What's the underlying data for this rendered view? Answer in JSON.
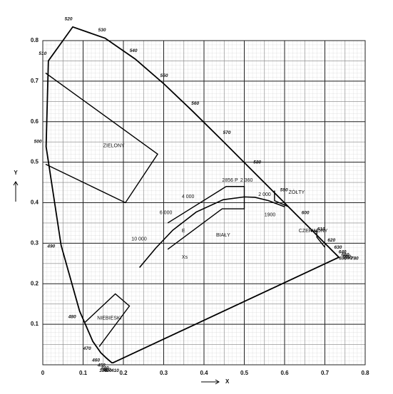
{
  "chart_data": {
    "type": "line",
    "x_label": "X",
    "y_label": "Y",
    "xlim": [
      0,
      0.8
    ],
    "ylim": [
      0,
      0.8
    ],
    "xticks": [
      0,
      0.1,
      0.2,
      0.3,
      0.4,
      0.5,
      0.6,
      0.7,
      0.8
    ],
    "yticks": [
      0.1,
      0.2,
      0.3,
      0.4,
      0.5,
      0.6,
      0.7,
      0.8
    ],
    "grid": true,
    "color": "#000000",
    "spectral_locus": {
      "x": [
        0.1741,
        0.1714,
        0.1689,
        0.1644,
        0.1566,
        0.144,
        0.1241,
        0.0913,
        0.0454,
        0.0082,
        0.0139,
        0.0743,
        0.1547,
        0.2296,
        0.3016,
        0.3731,
        0.4441,
        0.5125,
        0.5752,
        0.627,
        0.6658,
        0.6915,
        0.7079,
        0.719,
        0.726,
        0.73,
        0.7334,
        0.7347
      ],
      "y": [
        0.005,
        0.0051,
        0.0069,
        0.0109,
        0.0177,
        0.0297,
        0.0578,
        0.1327,
        0.295,
        0.5384,
        0.7502,
        0.8338,
        0.8059,
        0.7543,
        0.6923,
        0.6245,
        0.5547,
        0.4866,
        0.4242,
        0.3725,
        0.334,
        0.3083,
        0.292,
        0.2809,
        0.274,
        0.27,
        0.2666,
        0.2653
      ],
      "labels": [
        "380 - 410",
        "420",
        "430",
        "440",
        "450",
        "460",
        "470",
        "480",
        "490",
        "500",
        "510",
        "520",
        "530",
        "540",
        "550",
        "560",
        "570",
        "580",
        "590",
        "600",
        "610",
        "620",
        "630",
        "640",
        "650",
        "660",
        "680",
        "690 - 780"
      ]
    },
    "planckian_locus": {
      "x": [
        0.24,
        0.2807,
        0.3221,
        0.3805,
        0.4476,
        0.5,
        0.5267,
        0.56,
        0.6
      ],
      "y": [
        0.24,
        0.2884,
        0.3318,
        0.3768,
        0.4074,
        0.4143,
        0.4133,
        0.405,
        0.39
      ]
    },
    "regions": [
      {
        "x": [
          0.007,
          0.285,
          0.205,
          0.007
        ],
        "y": [
          0.72,
          0.52,
          0.4,
          0.495
        ]
      },
      {
        "x": [
          0.105,
          0.18,
          0.215,
          0.14
        ],
        "y": [
          0.105,
          0.175,
          0.145,
          0.045
        ]
      },
      {
        "x": [
          0.31,
          0.455,
          0.5,
          0.5,
          0.445,
          0.31
        ],
        "y": [
          0.35,
          0.44,
          0.44,
          0.385,
          0.385,
          0.285
        ]
      },
      {
        "x": [
          0.575,
          0.575,
          0.61
        ],
        "y": [
          0.43,
          0.405,
          0.39
        ]
      },
      {
        "x": [
          0.665,
          0.68,
          0.68,
          0.7
        ],
        "y": [
          0.33,
          0.33,
          0.315,
          0.29
        ]
      }
    ],
    "annotations": [
      {
        "text": "ZIELONY",
        "x": 0.15,
        "y": 0.54
      },
      {
        "text": "NIEBIESKI",
        "x": 0.135,
        "y": 0.115
      },
      {
        "text": "BIAŁY",
        "x": 0.43,
        "y": 0.32
      },
      {
        "text": "ŻÓŁTY",
        "x": 0.61,
        "y": 0.425
      },
      {
        "text": "CZERWONY",
        "x": 0.635,
        "y": 0.33
      },
      {
        "text": "E",
        "x": 0.345,
        "y": 0.33
      },
      {
        "text": "Xs",
        "x": 0.345,
        "y": 0.265
      },
      {
        "text": "10 000",
        "x": 0.22,
        "y": 0.31
      },
      {
        "text": "6 000",
        "x": 0.29,
        "y": 0.375
      },
      {
        "text": "4 000",
        "x": 0.345,
        "y": 0.415
      },
      {
        "text": "2856 P",
        "x": 0.445,
        "y": 0.455
      },
      {
        "text": "2 360",
        "x": 0.49,
        "y": 0.455
      },
      {
        "text": "2 000",
        "x": 0.535,
        "y": 0.42
      },
      {
        "text": "1900",
        "x": 0.55,
        "y": 0.37
      }
    ]
  }
}
